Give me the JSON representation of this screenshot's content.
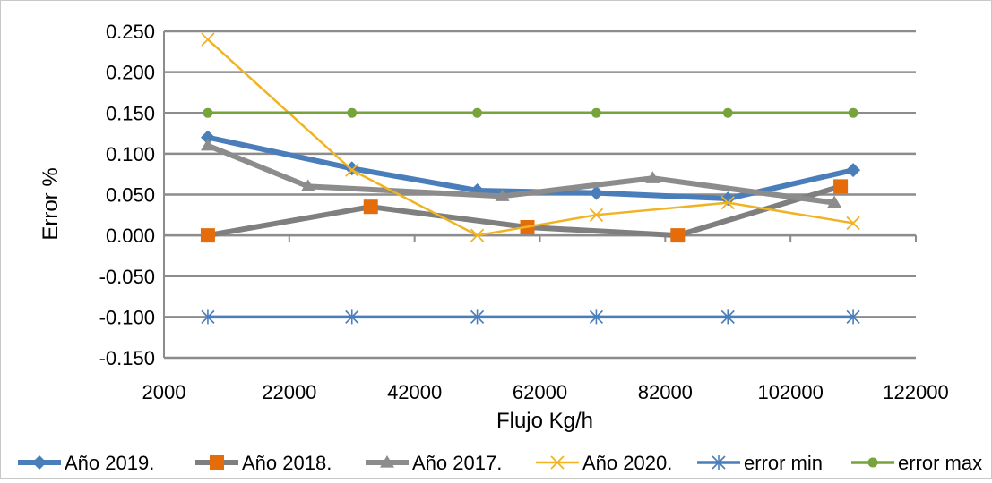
{
  "chart_data": {
    "type": "line",
    "title": "",
    "xlabel": "Flujo Kg/h",
    "ylabel": "Error %",
    "xlim": [
      2000,
      122000
    ],
    "ylim": [
      -0.15,
      0.25
    ],
    "x_ticks": [
      2000,
      22000,
      42000,
      62000,
      82000,
      102000,
      122000
    ],
    "x_tick_labels": [
      "2000",
      "22000",
      "42000",
      "62000",
      "82000",
      "102000",
      "122000"
    ],
    "y_ticks": [
      0.25,
      0.2,
      0.15,
      0.1,
      0.05,
      0.0,
      -0.05,
      -0.1,
      -0.15
    ],
    "y_tick_labels": [
      "0.250",
      "0.200",
      "0.150",
      "0.100",
      "0.050",
      "0.000",
      "-0.050",
      "-0.100",
      "-0.150"
    ],
    "grid": "horizontal",
    "legend_position": "bottom",
    "series": [
      {
        "name": "Año 2019.",
        "color": "#4a7ebb",
        "marker": "diamond",
        "line_width": "thick",
        "points": [
          [
            9000,
            0.12
          ],
          [
            32000,
            0.082
          ],
          [
            52000,
            0.055
          ],
          [
            71000,
            0.052
          ],
          [
            92000,
            0.045
          ],
          [
            112000,
            0.08
          ]
        ]
      },
      {
        "name": "Año 2018.",
        "color": "#7f7f7f",
        "marker_color": "#e46c0a",
        "marker": "square",
        "line_width": "thick",
        "points": [
          [
            9000,
            0.0
          ],
          [
            35000,
            0.035
          ],
          [
            60000,
            0.01
          ],
          [
            84000,
            0.0
          ],
          [
            110000,
            0.06
          ]
        ]
      },
      {
        "name": "Año 2017.",
        "color": "#8c8c8c",
        "marker": "triangle",
        "line_width": "thick",
        "points": [
          [
            9000,
            0.11
          ],
          [
            25000,
            0.06
          ],
          [
            56000,
            0.048
          ],
          [
            80000,
            0.07
          ],
          [
            109000,
            0.04
          ]
        ]
      },
      {
        "name": "Año 2020.",
        "color": "#f0b323",
        "marker": "x",
        "line_width": "thin",
        "points": [
          [
            9000,
            0.24
          ],
          [
            32000,
            0.08
          ],
          [
            52000,
            0.0
          ],
          [
            71000,
            0.025
          ],
          [
            92000,
            0.04
          ],
          [
            112000,
            0.015
          ]
        ]
      },
      {
        "name": "error min",
        "color": "#4a7ebb",
        "marker_color": "#4a7ebb",
        "marker": "asterisk",
        "line_width": "medium",
        "points": [
          [
            9000,
            -0.1
          ],
          [
            32000,
            -0.1
          ],
          [
            52000,
            -0.1
          ],
          [
            71000,
            -0.1
          ],
          [
            92000,
            -0.1
          ],
          [
            112000,
            -0.1
          ]
        ]
      },
      {
        "name": "error max",
        "color": "#77a33b",
        "marker": "circle",
        "line_width": "medium",
        "points": [
          [
            9000,
            0.15
          ],
          [
            32000,
            0.15
          ],
          [
            52000,
            0.15
          ],
          [
            71000,
            0.15
          ],
          [
            92000,
            0.15
          ],
          [
            112000,
            0.15
          ]
        ]
      }
    ]
  }
}
